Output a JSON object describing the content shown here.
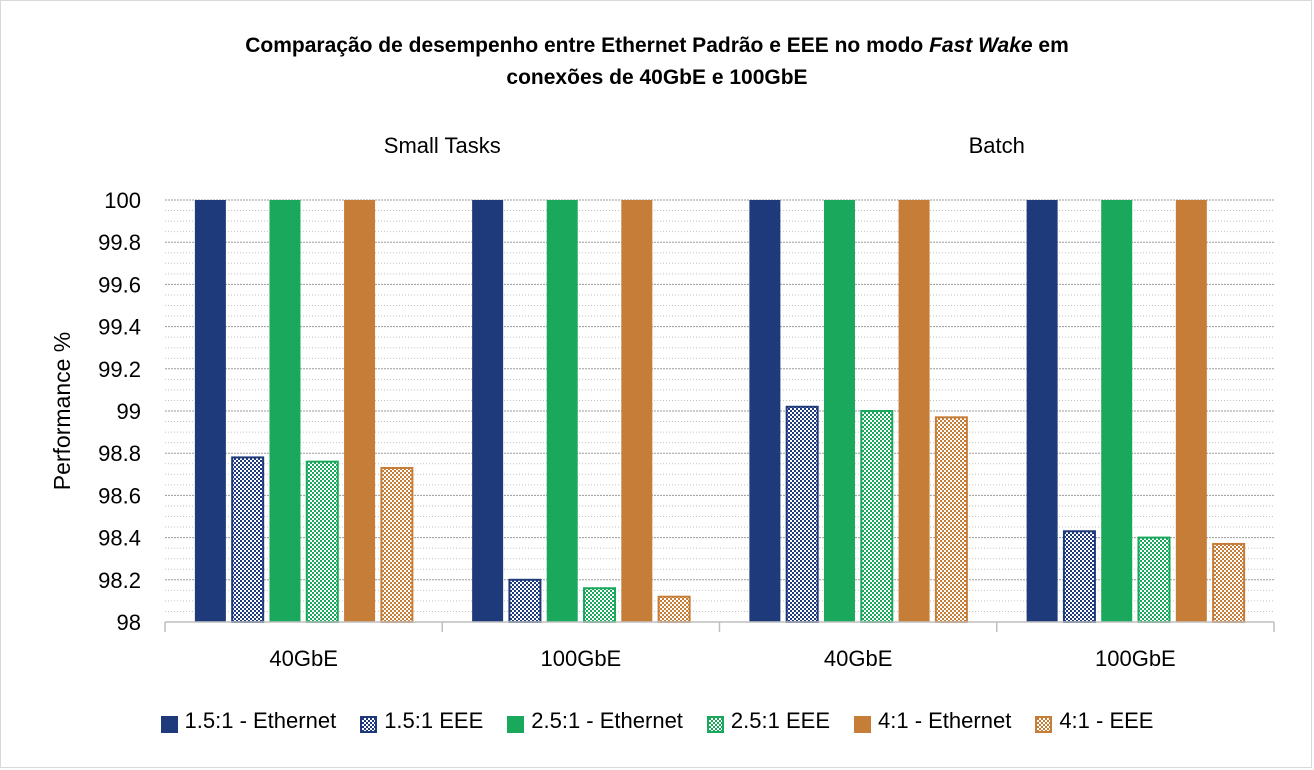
{
  "chart_data": {
    "type": "bar",
    "title_parts": [
      "Comparação de desempenho entre Ethernet Padrão e EEE no modo ",
      "Fast Wake",
      " em",
      "conexões de 40GbE e 100GbE"
    ],
    "xlabel": "",
    "ylabel": "Performance %",
    "ylim": [
      98,
      100
    ],
    "yticks": [
      "98",
      "98.2",
      "98.4",
      "98.6",
      "98.8",
      "99",
      "99.2",
      "99.4",
      "99.6",
      "99.8",
      "100"
    ],
    "groups": [
      "Small Tasks",
      "Batch"
    ],
    "categories": [
      "40GbE",
      "100GbE",
      "40GbE",
      "100GbE"
    ],
    "series": [
      {
        "name": "1.5:1 - Ethernet",
        "color": "#1f3a7a",
        "pattern": "solid",
        "values": [
          100,
          100,
          100,
          100
        ]
      },
      {
        "name": "1.5:1 EEE",
        "color": "#1f3a7a",
        "pattern": "checker",
        "values": [
          98.78,
          98.2,
          99.02,
          98.43
        ]
      },
      {
        "name": "2.5:1 - Ethernet",
        "color": "#1aa85c",
        "pattern": "solid",
        "values": [
          100,
          100,
          100,
          100
        ]
      },
      {
        "name": "2.5:1 EEE",
        "color": "#1aa85c",
        "pattern": "checker",
        "values": [
          98.76,
          98.16,
          99.0,
          98.4
        ]
      },
      {
        "name": "4:1 - Ethernet",
        "color": "#c67d38",
        "pattern": "solid",
        "values": [
          100,
          100,
          100,
          100
        ]
      },
      {
        "name": "4:1 - EEE",
        "color": "#c67d38",
        "pattern": "checker",
        "values": [
          98.73,
          98.12,
          98.97,
          98.37
        ]
      }
    ],
    "grid": true,
    "legend": "bottom"
  }
}
